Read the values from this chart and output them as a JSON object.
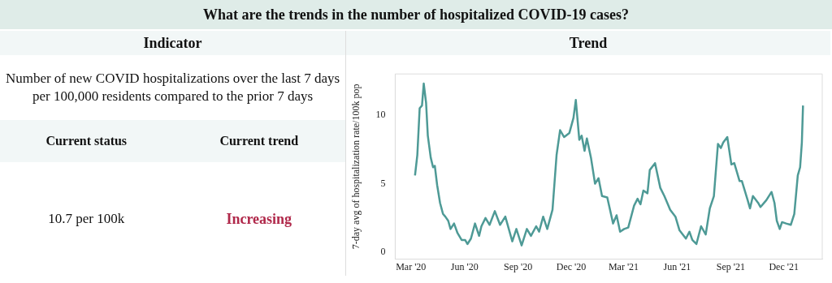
{
  "chart_data": [
    {
      "type": "other",
      "title": "What are the trends in the number of hospitalized COVID-19 cases?",
      "subtitle": "Indicator",
      "annotations": [
        "Number of new COVID hospitalizations over the last 7 days per 100,000 residents compared to the prior 7 days",
        "Current status",
        "Current trend",
        "10.7 per 100k",
        "Increasing"
      ]
    },
    {
      "type": "line",
      "title": "Trend",
      "ylabel": "7-day avg of hospitalization rate/100k pop",
      "color": "#4e9a96",
      "grid": false,
      "legend": false,
      "marker": "none",
      "x": [
        "2020-03-08",
        "2020-03-12",
        "2020-03-16",
        "2020-03-20",
        "2020-03-23",
        "2020-03-27",
        "2020-03-30",
        "2020-04-04",
        "2020-04-08",
        "2020-04-11",
        "2020-04-15",
        "2020-04-20",
        "2020-04-25",
        "2020-04-29",
        "2020-05-04",
        "2020-05-08",
        "2020-05-14",
        "2020-05-20",
        "2020-05-27",
        "2020-06-02",
        "2020-06-06",
        "2020-06-12",
        "2020-06-19",
        "2020-06-26",
        "2020-06-30",
        "2020-07-07",
        "2020-07-14",
        "2020-07-23",
        "2020-08-01",
        "2020-08-10",
        "2020-08-22",
        "2020-08-29",
        "2020-09-07",
        "2020-09-16",
        "2020-09-23",
        "2020-10-02",
        "2020-10-07",
        "2020-10-14",
        "2020-10-21",
        "2020-10-30",
        "2020-11-06",
        "2020-11-12",
        "2020-11-19",
        "2020-11-28",
        "2020-12-05",
        "2020-12-09",
        "2020-12-15",
        "2020-12-19",
        "2020-12-24",
        "2020-12-28",
        "2021-01-04",
        "2021-01-11",
        "2021-01-17",
        "2021-01-23",
        "2021-02-01",
        "2021-02-11",
        "2021-02-17",
        "2021-02-23",
        "2021-03-02",
        "2021-03-09",
        "2021-03-19",
        "2021-03-25",
        "2021-03-30",
        "2021-04-04",
        "2021-04-11",
        "2021-04-15",
        "2021-04-24",
        "2021-05-03",
        "2021-05-10",
        "2021-05-20",
        "2021-05-29",
        "2021-06-05",
        "2021-06-16",
        "2021-06-22",
        "2021-06-27",
        "2021-07-04",
        "2021-07-12",
        "2021-07-20",
        "2021-07-27",
        "2021-08-03",
        "2021-08-10",
        "2021-08-15",
        "2021-08-19",
        "2021-08-26",
        "2021-09-02",
        "2021-09-07",
        "2021-09-16",
        "2021-09-20",
        "2021-09-30",
        "2021-10-04",
        "2021-10-09",
        "2021-10-18",
        "2021-10-22",
        "2021-11-01",
        "2021-11-10",
        "2021-11-15",
        "2021-11-19",
        "2021-11-24",
        "2021-11-28",
        "2021-12-05",
        "2021-12-13",
        "2021-12-19",
        "2021-12-25",
        "2021-12-29",
        "2022-01-01",
        "2022-01-03"
      ],
      "values": [
        5.6,
        7.1,
        10.5,
        10.7,
        12.3,
        10.9,
        8.5,
        6.9,
        6.2,
        6.3,
        4.9,
        3.6,
        2.8,
        2.6,
        2.3,
        1.7,
        2.1,
        1.4,
        0.9,
        0.9,
        0.6,
        1.0,
        2.1,
        1.2,
        1.9,
        2.5,
        2.0,
        3.0,
        2.0,
        2.6,
        0.8,
        1.7,
        0.5,
        1.7,
        1.2,
        1.9,
        1.5,
        2.6,
        1.7,
        3.1,
        7.1,
        8.9,
        8.4,
        8.7,
        9.8,
        11.1,
        8.2,
        8.5,
        7.4,
        8.3,
        6.9,
        5.0,
        5.4,
        4.1,
        4.0,
        2.1,
        2.7,
        1.5,
        1.7,
        1.8,
        3.4,
        3.9,
        3.5,
        4.5,
        4.3,
        6.0,
        6.5,
        4.7,
        4.1,
        3.1,
        2.6,
        1.6,
        1.0,
        1.5,
        0.9,
        0.6,
        1.9,
        1.3,
        3.2,
        4.1,
        7.9,
        7.6,
        8.0,
        8.4,
        6.4,
        6.5,
        5.2,
        5.2,
        3.8,
        3.2,
        4.1,
        3.6,
        3.3,
        3.8,
        4.4,
        3.6,
        2.3,
        1.7,
        2.2,
        2.1,
        2.0,
        2.8,
        5.6,
        6.2,
        8.0,
        10.7
      ],
      "xlim": [
        "2020-02-03",
        "2022-02-05"
      ],
      "ylim": [
        -0.5,
        13
      ],
      "xticks": [
        {
          "value": "2020-03-01",
          "label": "Mar '20"
        },
        {
          "value": "2020-06-01",
          "label": "Jun '20"
        },
        {
          "value": "2020-09-01",
          "label": "Sep '20"
        },
        {
          "value": "2020-12-01",
          "label": "Dec '20"
        },
        {
          "value": "2021-03-01",
          "label": "Mar '21"
        },
        {
          "value": "2021-06-01",
          "label": "Jun '21"
        },
        {
          "value": "2021-09-01",
          "label": "Sep '21"
        },
        {
          "value": "2021-12-01",
          "label": "Dec '21"
        }
      ],
      "yticks": [
        0,
        5,
        10
      ]
    }
  ]
}
